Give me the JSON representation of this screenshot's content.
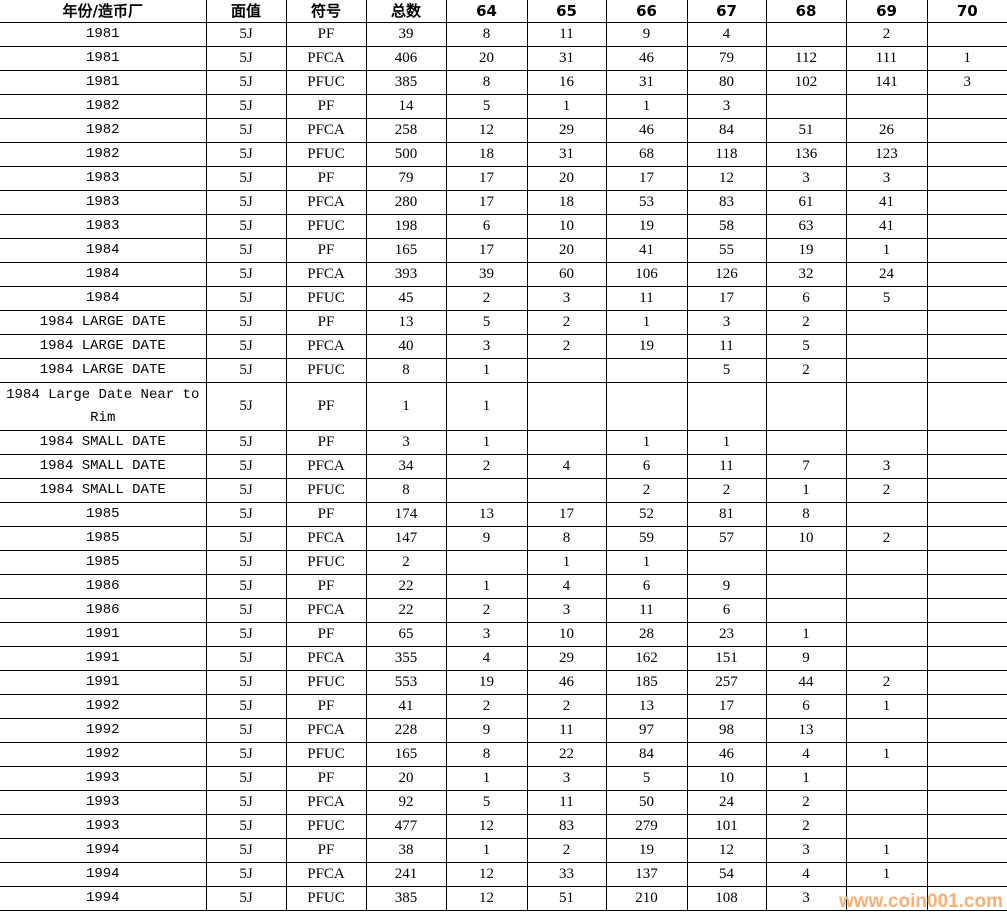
{
  "table": {
    "headers": [
      "年份/造币厂",
      "面值",
      "符号",
      "总数",
      "64",
      "65",
      "66",
      "67",
      "68",
      "69",
      "70"
    ],
    "rows": [
      [
        "1981",
        "5J",
        "PF",
        "39",
        "8",
        "11",
        "9",
        "4",
        "",
        "2",
        ""
      ],
      [
        "1981",
        "5J",
        "PFCA",
        "406",
        "20",
        "31",
        "46",
        "79",
        "112",
        "111",
        "1"
      ],
      [
        "1981",
        "5J",
        "PFUC",
        "385",
        "8",
        "16",
        "31",
        "80",
        "102",
        "141",
        "3"
      ],
      [
        "1982",
        "5J",
        "PF",
        "14",
        "5",
        "1",
        "1",
        "3",
        "",
        "",
        ""
      ],
      [
        "1982",
        "5J",
        "PFCA",
        "258",
        "12",
        "29",
        "46",
        "84",
        "51",
        "26",
        ""
      ],
      [
        "1982",
        "5J",
        "PFUC",
        "500",
        "18",
        "31",
        "68",
        "118",
        "136",
        "123",
        ""
      ],
      [
        "1983",
        "5J",
        "PF",
        "79",
        "17",
        "20",
        "17",
        "12",
        "3",
        "3",
        ""
      ],
      [
        "1983",
        "5J",
        "PFCA",
        "280",
        "17",
        "18",
        "53",
        "83",
        "61",
        "41",
        ""
      ],
      [
        "1983",
        "5J",
        "PFUC",
        "198",
        "6",
        "10",
        "19",
        "58",
        "63",
        "41",
        ""
      ],
      [
        "1984",
        "5J",
        "PF",
        "165",
        "17",
        "20",
        "41",
        "55",
        "19",
        "1",
        ""
      ],
      [
        "1984",
        "5J",
        "PFCA",
        "393",
        "39",
        "60",
        "106",
        "126",
        "32",
        "24",
        ""
      ],
      [
        "1984",
        "5J",
        "PFUC",
        "45",
        "2",
        "3",
        "11",
        "17",
        "6",
        "5",
        ""
      ],
      [
        "1984 LARGE DATE",
        "5J",
        "PF",
        "13",
        "5",
        "2",
        "1",
        "3",
        "2",
        "",
        ""
      ],
      [
        "1984 LARGE DATE",
        "5J",
        "PFCA",
        "40",
        "3",
        "2",
        "19",
        "11",
        "5",
        "",
        ""
      ],
      [
        "1984 LARGE DATE",
        "5J",
        "PFUC",
        "8",
        "1",
        "",
        "",
        "5",
        "2",
        "",
        ""
      ],
      [
        "1984 Large Date Near to Rim",
        "5J",
        "PF",
        "1",
        "1",
        "",
        "",
        "",
        "",
        "",
        ""
      ],
      [
        "1984 SMALL DATE",
        "5J",
        "PF",
        "3",
        "1",
        "",
        "1",
        "1",
        "",
        "",
        ""
      ],
      [
        "1984 SMALL DATE",
        "5J",
        "PFCA",
        "34",
        "2",
        "4",
        "6",
        "11",
        "7",
        "3",
        ""
      ],
      [
        "1984 SMALL DATE",
        "5J",
        "PFUC",
        "8",
        "",
        "",
        "2",
        "2",
        "1",
        "2",
        ""
      ],
      [
        "1985",
        "5J",
        "PF",
        "174",
        "13",
        "17",
        "52",
        "81",
        "8",
        "",
        ""
      ],
      [
        "1985",
        "5J",
        "PFCA",
        "147",
        "9",
        "8",
        "59",
        "57",
        "10",
        "2",
        ""
      ],
      [
        "1985",
        "5J",
        "PFUC",
        "2",
        "",
        "1",
        "1",
        "",
        "",
        "",
        ""
      ],
      [
        "1986",
        "5J",
        "PF",
        "22",
        "1",
        "4",
        "6",
        "9",
        "",
        "",
        ""
      ],
      [
        "1986",
        "5J",
        "PFCA",
        "22",
        "2",
        "3",
        "11",
        "6",
        "",
        "",
        ""
      ],
      [
        "1991",
        "5J",
        "PF",
        "65",
        "3",
        "10",
        "28",
        "23",
        "1",
        "",
        ""
      ],
      [
        "1991",
        "5J",
        "PFCA",
        "355",
        "4",
        "29",
        "162",
        "151",
        "9",
        "",
        ""
      ],
      [
        "1991",
        "5J",
        "PFUC",
        "553",
        "19",
        "46",
        "185",
        "257",
        "44",
        "2",
        ""
      ],
      [
        "1992",
        "5J",
        "PF",
        "41",
        "2",
        "2",
        "13",
        "17",
        "6",
        "1",
        ""
      ],
      [
        "1992",
        "5J",
        "PFCA",
        "228",
        "9",
        "11",
        "97",
        "98",
        "13",
        "",
        ""
      ],
      [
        "1992",
        "5J",
        "PFUC",
        "165",
        "8",
        "22",
        "84",
        "46",
        "4",
        "1",
        ""
      ],
      [
        "1993",
        "5J",
        "PF",
        "20",
        "1",
        "3",
        "5",
        "10",
        "1",
        "",
        ""
      ],
      [
        "1993",
        "5J",
        "PFCA",
        "92",
        "5",
        "11",
        "50",
        "24",
        "2",
        "",
        ""
      ],
      [
        "1993",
        "5J",
        "PFUC",
        "477",
        "12",
        "83",
        "279",
        "101",
        "2",
        "",
        ""
      ],
      [
        "1994",
        "5J",
        "PF",
        "38",
        "1",
        "2",
        "19",
        "12",
        "3",
        "1",
        ""
      ],
      [
        "1994",
        "5J",
        "PFCA",
        "241",
        "12",
        "33",
        "137",
        "54",
        "4",
        "1",
        ""
      ],
      [
        "1994",
        "5J",
        "PFUC",
        "385",
        "12",
        "51",
        "210",
        "108",
        "3",
        "",
        ""
      ]
    ]
  },
  "watermark": "www.coin001.com"
}
